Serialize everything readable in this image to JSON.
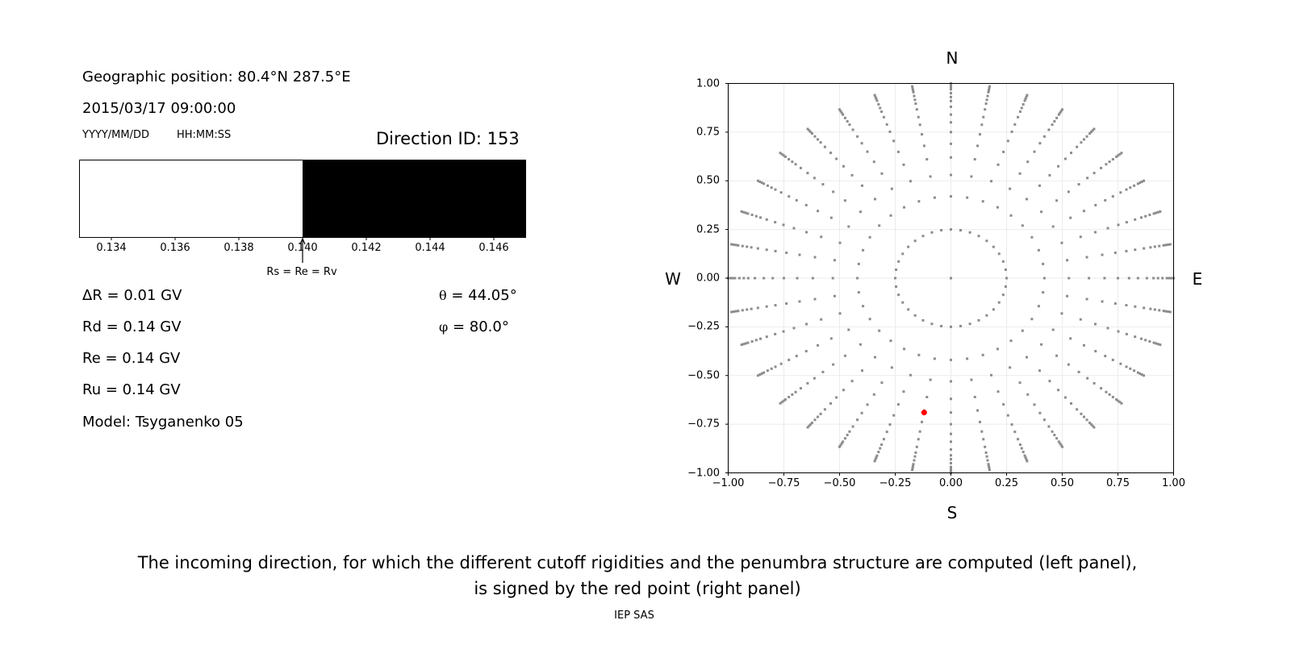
{
  "left_panel": {
    "position_label": "Geographic position: 80.4°N 287.5°E",
    "datetime": "2015/03/17 09:00:00",
    "date_format": "YYYY/MM/DD",
    "time_format": "HH:MM:SS",
    "direction_id": "Direction ID: 153",
    "delta_r": "ΔR = 0.01 GV",
    "rd": "Rd = 0.14 GV",
    "re": "Re = 0.14 GV",
    "ru": "Ru = 0.14 GV",
    "model": "Model: Tsyganenko 05",
    "theta_symbol": "θ",
    "theta_value": "= 44.05°",
    "phi_symbol": "φ",
    "phi_value": "= 80.0°"
  },
  "chart_data": [
    {
      "type": "bar",
      "description_kind": "penumbra",
      "xlim": [
        0.133,
        0.147
      ],
      "xticks": [
        "0.134",
        "0.136",
        "0.138",
        "0.140",
        "0.142",
        "0.144",
        "0.146"
      ],
      "segments": [
        {
          "from": 0.133,
          "to": 0.14,
          "color": "#ffffff"
        },
        {
          "from": 0.14,
          "to": 0.147,
          "color": "#000000"
        }
      ],
      "annotation": {
        "x": 0.14,
        "text": "Rs = Re = Rv"
      }
    },
    {
      "type": "scatter",
      "xlim": [
        -1,
        1
      ],
      "ylim": [
        -1,
        1
      ],
      "grid": true,
      "xticks": [
        "−1.00",
        "−0.75",
        "−0.50",
        "−0.25",
        "0.00",
        "0.25",
        "0.50",
        "0.75",
        "1.00"
      ],
      "yticks": [
        "1.00",
        "0.75",
        "0.50",
        "0.25",
        "0.00",
        "−0.25",
        "−0.50",
        "−0.75",
        "−1.00"
      ],
      "compass": {
        "north": "N",
        "south": "S",
        "west": "W",
        "east": "E"
      },
      "grid_points": {
        "color": "#8c8c8c",
        "center": [
          0,
          0
        ],
        "azimuth_step_deg": 10,
        "radii": [
          0.25,
          0.42,
          0.53,
          0.62,
          0.69,
          0.75,
          0.8,
          0.84,
          0.88,
          0.91,
          0.93,
          0.95,
          0.97,
          0.98,
          0.99,
          1.0
        ]
      },
      "highlight_point": {
        "x": -0.12,
        "y": -0.69,
        "color": "#ff0000"
      }
    }
  ],
  "caption": {
    "line1": "The incoming direction, for which the different cutoff rigidities and the penumbra structure are computed (left panel),",
    "line2": "is signed by the red point (right panel)"
  },
  "footer": "IEP SAS"
}
